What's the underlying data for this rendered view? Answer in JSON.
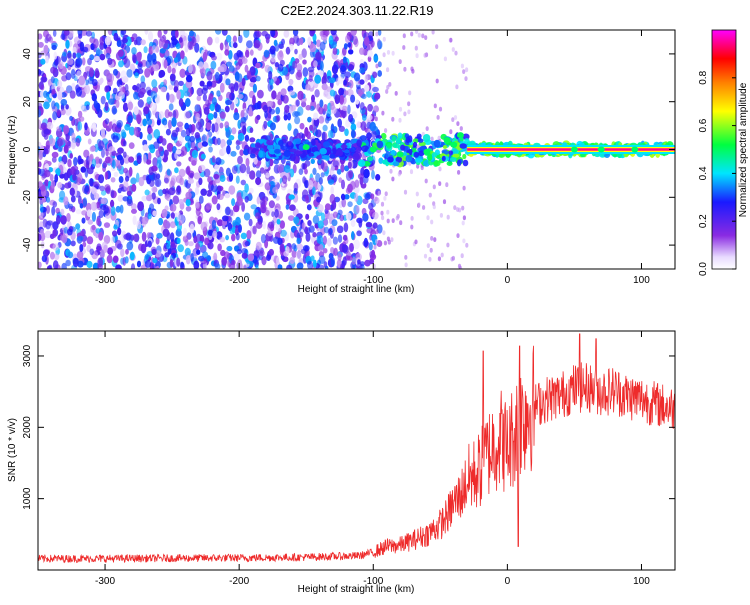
{
  "title": "C2E2.2024.303.11.22.R19",
  "chart_data": [
    {
      "type": "heatmap",
      "title": "C2E2.2024.303.11.22.R19",
      "xlabel": "Height of straight line (km)",
      "ylabel": "Frequency (Hz)",
      "xlim": [
        -350,
        125
      ],
      "ylim": [
        -50,
        50
      ],
      "xticks": [
        -300,
        -200,
        -100,
        0,
        100
      ],
      "yticks": [
        -40,
        -20,
        0,
        20,
        40
      ],
      "grid": false,
      "description_of_pattern": {
        "noise_region_x": [
          -350,
          -100
        ],
        "noise_amplitude_range": [
          0.15,
          0.35
        ],
        "signal_band_center_hz": 0,
        "signal_band_x": [
          -190,
          125
        ],
        "signal_amplitude_at_strongest": 0.95,
        "transition_region_x": [
          -110,
          -30
        ]
      },
      "colorbar": {
        "label": "Normalized spectral amplitude",
        "ticks": [
          0.0,
          0.2,
          0.4,
          0.6,
          0.8
        ],
        "range": [
          0.0,
          1.0
        ],
        "colormap": [
          "#ffffff",
          "#8a2be2",
          "#1010ff",
          "#00e5ff",
          "#00ff40",
          "#ffff00",
          "#ff8000",
          "#ff0000",
          "#ff00ff"
        ]
      }
    },
    {
      "type": "line",
      "xlabel": "Height of straight line (km)",
      "ylabel": "SNR (10 * v/v)",
      "xlim": [
        -350,
        125
      ],
      "ylim": [
        0,
        3350
      ],
      "xticks": [
        -300,
        -200,
        -100,
        0,
        100
      ],
      "yticks": [
        1000,
        2000,
        3000
      ],
      "grid": false,
      "color": "#ee2b2b",
      "series": [
        {
          "x": [
            -350,
            -300,
            -250,
            -200,
            -150,
            -110,
            -100,
            -90,
            -80,
            -70,
            -60,
            -50,
            -45,
            -40,
            -35,
            -30,
            -25,
            -20,
            -15,
            -10,
            -5,
            0,
            5,
            10,
            15,
            20,
            30,
            40,
            50,
            60,
            70,
            80,
            90,
            100,
            110,
            125
          ],
          "values": [
            160,
            160,
            165,
            170,
            180,
            200,
            250,
            330,
            350,
            420,
            500,
            640,
            760,
            930,
            1050,
            1250,
            1330,
            1420,
            1620,
            1770,
            1860,
            1700,
            1920,
            2120,
            2250,
            2300,
            2400,
            2450,
            2550,
            2560,
            2500,
            2520,
            2430,
            2400,
            2330,
            2260
          ],
          "spikes": [
            {
              "x": -18,
              "value": 3070
            },
            {
              "x": 9,
              "value": 3140
            },
            {
              "x": 54,
              "value": 3310
            },
            {
              "x": 66,
              "value": 3240
            },
            {
              "x": 8,
              "value": 330
            }
          ]
        }
      ]
    }
  ]
}
